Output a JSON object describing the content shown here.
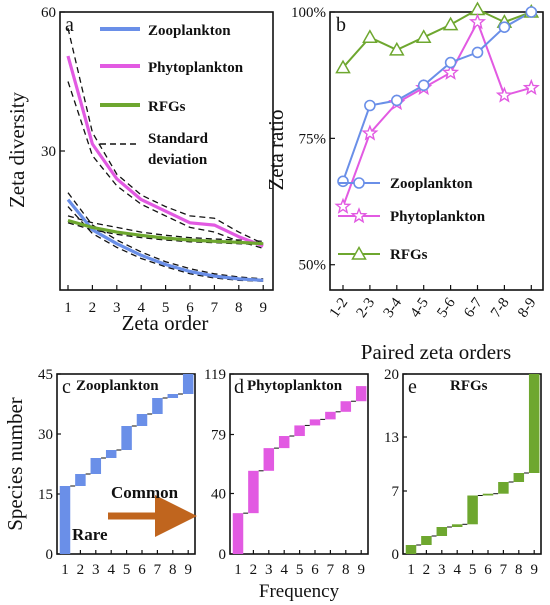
{
  "colors": {
    "zooplankton": "#6A8FE8",
    "phytoplankton": "#E25AE2",
    "rfgs": "#6EA72F",
    "arrow": "#C0651E",
    "label_rare": "#C0651E",
    "label_common": "#C0651E"
  },
  "panels": {
    "a": {
      "label": "a"
    },
    "b": {
      "label": "b"
    },
    "c": {
      "label": "c",
      "inline_title": "Zooplankton"
    },
    "d": {
      "label": "d",
      "inline_title": "Phytoplankton"
    },
    "e": {
      "label": "e",
      "inline_title": "RFGs"
    }
  },
  "annotations": {
    "rare": "Rare",
    "common": "Common"
  },
  "chart_data": [
    {
      "panel": "a",
      "type": "line",
      "xlabel": "Zeta order",
      "ylabel": "Zeta diversity",
      "x": [
        1,
        2,
        3,
        4,
        5,
        6,
        7,
        8,
        9
      ],
      "x_ticks": [
        "1",
        "2",
        "3",
        "4",
        "5",
        "6",
        "7",
        "8",
        "9"
      ],
      "ylim": [
        0,
        60
      ],
      "y_ticks": [
        30,
        60
      ],
      "legend_position": "top-right",
      "legend_extra": "Standard deviation",
      "series": [
        {
          "name": "Zooplankton",
          "color_key": "zooplankton",
          "values": [
            19.5,
            13.0,
            10.0,
            7.5,
            5.5,
            4.0,
            3.0,
            2.4,
            2.1
          ],
          "sd_upper": [
            21.0,
            14.0,
            10.8,
            8.2,
            6.1,
            4.6,
            3.5,
            2.8,
            2.4
          ],
          "sd_lower": [
            18.0,
            12.2,
            9.2,
            6.8,
            5.0,
            3.5,
            2.6,
            2.1,
            1.9
          ]
        },
        {
          "name": "Phytoplankton",
          "color_key": "phytoplankton",
          "values": [
            50.5,
            31.5,
            24.0,
            19.5,
            17.0,
            14.5,
            14.0,
            11.5,
            9.5
          ],
          "sd_upper": [
            56.5,
            34.0,
            25.0,
            20.5,
            18.0,
            16.0,
            15.5,
            12.5,
            10.0
          ],
          "sd_lower": [
            45.0,
            29.0,
            22.5,
            18.5,
            16.0,
            13.5,
            12.5,
            10.5,
            9.0
          ]
        },
        {
          "name": "RFGs",
          "color_key": "rfgs",
          "values": [
            15.0,
            13.5,
            12.5,
            11.8,
            11.2,
            10.8,
            10.5,
            10.3,
            10.0
          ],
          "sd_upper": [
            16.0,
            14.5,
            13.5,
            12.5,
            11.8,
            11.3,
            11.0,
            10.8,
            10.5
          ],
          "sd_lower": [
            14.5,
            13.0,
            12.0,
            11.3,
            10.8,
            10.4,
            10.2,
            10.0,
            9.8
          ]
        }
      ]
    },
    {
      "panel": "b",
      "type": "line",
      "xlabel": "Paired zeta orders",
      "ylabel": "Zeta ratio",
      "categories": [
        "1-2",
        "2-3",
        "3-4",
        "4-5",
        "5-6",
        "6-7",
        "7-8",
        "8-9"
      ],
      "ylim": [
        45,
        100
      ],
      "y_ticks": [
        50,
        75,
        100
      ],
      "y_tick_labels": [
        "50%",
        "75%",
        "100%"
      ],
      "legend_position": "bottom-right",
      "series": [
        {
          "name": "Zooplankton",
          "color_key": "zooplankton",
          "marker": "circle",
          "values": [
            66.5,
            81.5,
            82.5,
            85.5,
            90.0,
            92.0,
            97.0,
            100.0
          ]
        },
        {
          "name": "Phytoplankton",
          "color_key": "phytoplankton",
          "marker": "star",
          "values": [
            61.5,
            76.0,
            82.0,
            85.0,
            88.0,
            98.0,
            83.5,
            85.0
          ]
        },
        {
          "name": "RFGs",
          "color_key": "rfgs",
          "marker": "triangle",
          "values": [
            89.0,
            95.0,
            92.5,
            95.0,
            97.5,
            100.5,
            98.0,
            100.0
          ]
        }
      ]
    },
    {
      "panel": "c",
      "type": "bar",
      "subtype": "waterfall",
      "series_name": "Zooplankton",
      "color_key": "zooplankton",
      "ylabel": "Species number",
      "x": [
        1,
        2,
        3,
        4,
        5,
        6,
        7,
        8,
        9
      ],
      "ylim": [
        0,
        45
      ],
      "y_ticks": [
        0,
        15,
        30,
        45
      ],
      "cumulative": [
        0,
        17,
        20,
        24,
        26,
        32,
        35,
        39,
        40,
        45
      ]
    },
    {
      "panel": "d",
      "type": "bar",
      "subtype": "waterfall",
      "series_name": "Phytoplankton",
      "color_key": "phytoplankton",
      "xlabel": "Frequency",
      "x": [
        1,
        2,
        3,
        4,
        5,
        6,
        7,
        8,
        9
      ],
      "ylim": [
        0,
        119
      ],
      "y_ticks": [
        0,
        40,
        79,
        119
      ],
      "cumulative": [
        0,
        27,
        55,
        70,
        78,
        85,
        89,
        94,
        101,
        111
      ]
    },
    {
      "panel": "e",
      "type": "bar",
      "subtype": "waterfall",
      "series_name": "RFGs",
      "color_key": "rfgs",
      "x": [
        1,
        2,
        3,
        4,
        5,
        6,
        7,
        8,
        9
      ],
      "ylim": [
        0,
        20
      ],
      "y_ticks": [
        0,
        7,
        13,
        20
      ],
      "cumulative": [
        0,
        1,
        2,
        3,
        3.3,
        6.5,
        6.7,
        8,
        9,
        20
      ]
    }
  ]
}
